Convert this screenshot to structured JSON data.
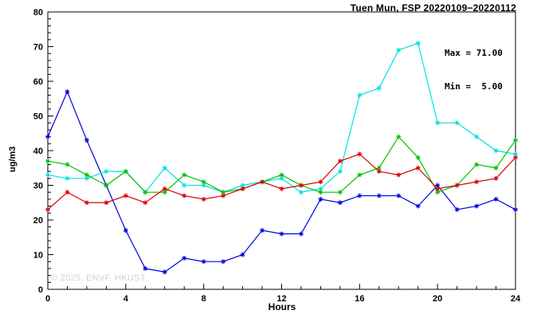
{
  "title": "Tuen Mun, FSP 20220109−20220112",
  "annotation": {
    "max": "Max = 71.00",
    "min": "Min =  5.00"
  },
  "watermark": "© 2025, ENVF, HKUST",
  "chart_data": {
    "type": "line",
    "title": "Tuen Mun, FSP 20220109−20220112",
    "xlabel": "Hours",
    "ylabel": "ug/m3",
    "xlim": [
      0,
      24
    ],
    "ylim": [
      0,
      80
    ],
    "xticks": [
      0,
      4,
      8,
      12,
      16,
      20,
      24
    ],
    "yticks": [
      0,
      10,
      20,
      30,
      40,
      50,
      60,
      70,
      80
    ],
    "x_minor_step": 1,
    "y_minor_step": 2,
    "grid": false,
    "legend": "none",
    "marker": "asterisk",
    "x": [
      0,
      1,
      2,
      3,
      4,
      5,
      6,
      7,
      8,
      9,
      10,
      11,
      12,
      13,
      14,
      15,
      16,
      17,
      18,
      19,
      20,
      21,
      22,
      23,
      24
    ],
    "series": [
      {
        "name": "blue",
        "color": "#0000e0",
        "values": [
          44,
          57,
          43,
          30,
          17,
          6,
          5,
          9,
          8,
          8,
          10,
          17,
          16,
          16,
          26,
          25,
          27,
          27,
          27,
          24,
          30,
          23,
          24,
          26,
          23
        ]
      },
      {
        "name": "cyan",
        "color": "#00e0e0",
        "values": [
          33,
          32,
          32,
          34,
          34,
          28,
          35,
          30,
          30,
          28,
          30,
          31,
          32,
          28,
          29,
          34,
          56,
          58,
          69,
          71,
          48,
          48,
          44,
          40,
          39
        ]
      },
      {
        "name": "green",
        "color": "#00c000",
        "values": [
          37,
          36,
          33,
          30,
          34,
          28,
          28,
          33,
          31,
          28,
          29,
          31,
          33,
          30,
          28,
          28,
          33,
          35,
          44,
          38,
          28,
          30,
          36,
          35,
          43
        ]
      },
      {
        "name": "red",
        "color": "#dd0000",
        "values": [
          23,
          28,
          25,
          25,
          27,
          25,
          29,
          27,
          26,
          27,
          29,
          31,
          29,
          30,
          31,
          37,
          39,
          34,
          33,
          35,
          29,
          30,
          31,
          32,
          38
        ]
      }
    ],
    "stats": {
      "max": 71.0,
      "min": 5.0
    }
  }
}
